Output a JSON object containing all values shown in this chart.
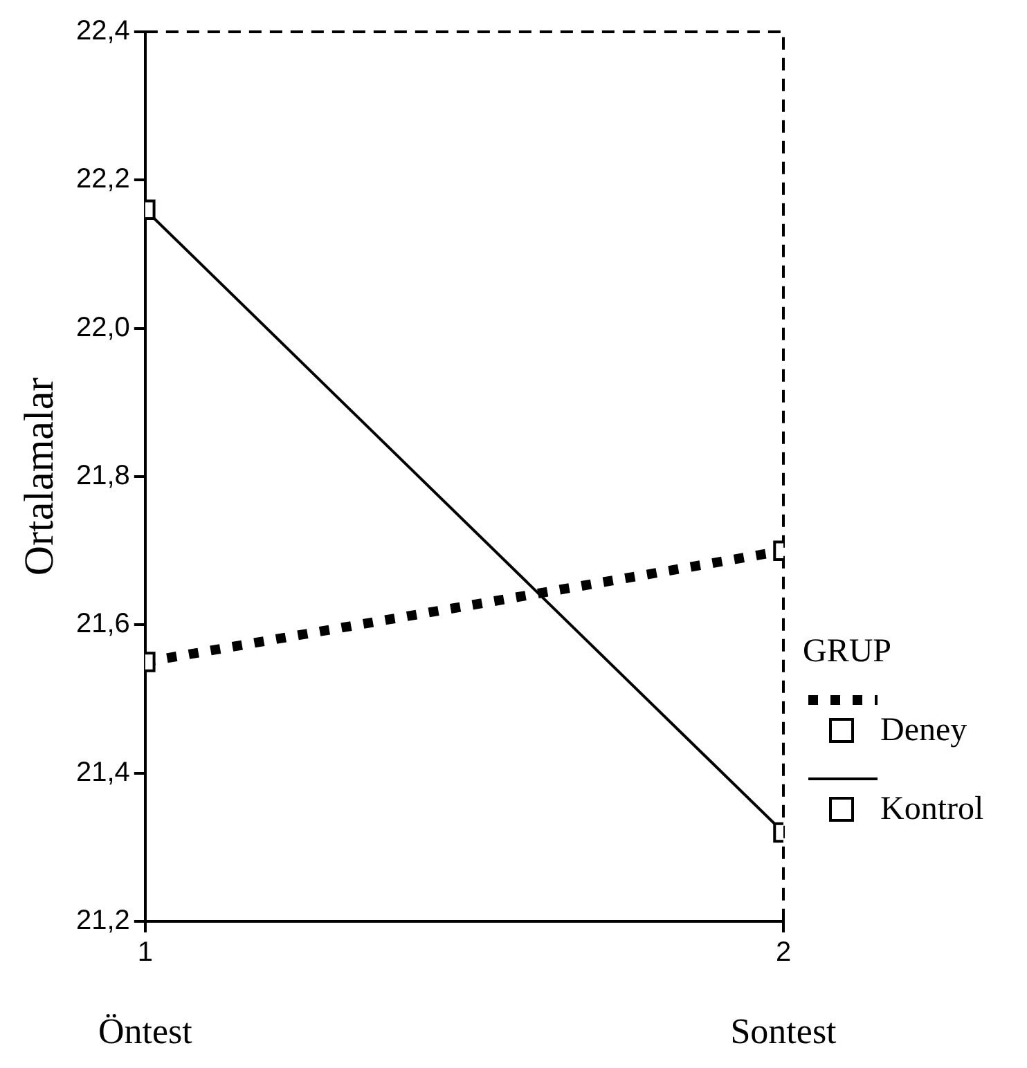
{
  "chart_data": {
    "type": "line",
    "ylabel": "Ortalamalar",
    "legend_title": "GRUP",
    "x": [
      1,
      2
    ],
    "xlim": [
      1,
      2
    ],
    "xticks": [
      1,
      2
    ],
    "ylim": [
      21.2,
      22.4
    ],
    "yticks": [
      {
        "value": 21.2,
        "label": "21,2"
      },
      {
        "value": 21.4,
        "label": "21,4"
      },
      {
        "value": 21.6,
        "label": "21,6"
      },
      {
        "value": 21.8,
        "label": "21,8"
      },
      {
        "value": 22.0,
        "label": "22,0"
      },
      {
        "value": 22.2,
        "label": "22,2"
      },
      {
        "value": 22.4,
        "label": "22,4"
      }
    ],
    "series": [
      {
        "name": "Deney",
        "color": "#000000",
        "values": [
          21.55,
          21.7
        ],
        "line_style": "dotted"
      },
      {
        "name": "Kontrol",
        "color": "#000000",
        "values": [
          22.16,
          21.32
        ],
        "line_style": "solid"
      }
    ],
    "marker": "square",
    "legend": "right",
    "grid": false,
    "annotations": [
      "Öntest",
      "Sontest"
    ]
  }
}
